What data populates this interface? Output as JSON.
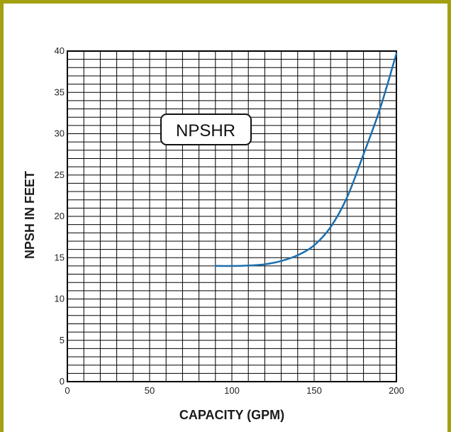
{
  "chart_data": {
    "type": "line",
    "xlabel": "CAPACITY (GPM)",
    "ylabel": "NPSH IN FEET",
    "xlim": [
      0,
      200
    ],
    "ylim": [
      0,
      40
    ],
    "x_ticks": [
      0,
      50,
      100,
      150,
      200
    ],
    "y_ticks": [
      0,
      5,
      10,
      15,
      20,
      25,
      30,
      35,
      40
    ],
    "grid": true,
    "grid_x_step": 10,
    "grid_y_step": 1,
    "annotation": "NPSHR",
    "series": [
      {
        "color": "#1b6fae",
        "x": [
          90,
          100,
          110,
          120,
          130,
          140,
          150,
          160,
          170,
          180,
          190,
          200
        ],
        "y": [
          14.0,
          14.0,
          14.05,
          14.2,
          14.6,
          15.3,
          16.5,
          18.7,
          22.3,
          27.5,
          33.0,
          39.7
        ]
      }
    ]
  },
  "colors": {
    "border": "#a3a012",
    "curve": "#1b6fae",
    "grid": "#000000"
  }
}
